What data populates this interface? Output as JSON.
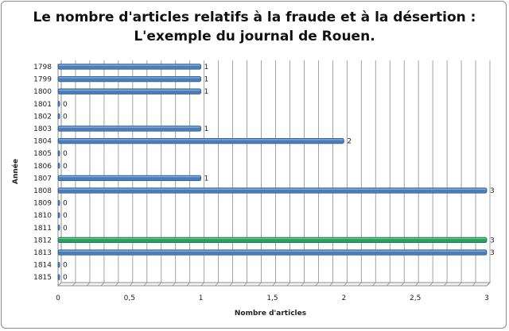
{
  "chart_data": {
    "type": "bar",
    "orientation": "horizontal",
    "title_line1": "Le nombre d'articles relatifs à la fraude et à la désertion :",
    "title_line2": "L'exemple du journal de Rouen.",
    "xlabel": "Nombre d'articles",
    "ylabel": "Année",
    "categories": [
      "1798",
      "1799",
      "1800",
      "1801",
      "1802",
      "1803",
      "1804",
      "1805",
      "1806",
      "1807",
      "1808",
      "1809",
      "1810",
      "1811",
      "1812",
      "1813",
      "1814",
      "1815"
    ],
    "values": [
      1,
      1,
      1,
      0,
      0,
      1,
      2,
      0,
      0,
      1,
      3,
      0,
      0,
      0,
      3,
      3,
      0,
      0
    ],
    "data_labels": [
      "1",
      "1",
      "1",
      "0",
      "0",
      "1",
      "2",
      "0",
      "0",
      "1",
      "3",
      "0",
      "0",
      "0",
      "3",
      "3",
      "0",
      "0"
    ],
    "x_ticks": [
      "0",
      "0,5",
      "1",
      "1,5",
      "2",
      "2,5",
      "3"
    ],
    "xlim": [
      0,
      3
    ],
    "grid": true,
    "bar_color": "#4a7ebb",
    "highlight_category": "1812",
    "highlight_color": "#22a64b",
    "grid_color": "#8c8c8c"
  }
}
